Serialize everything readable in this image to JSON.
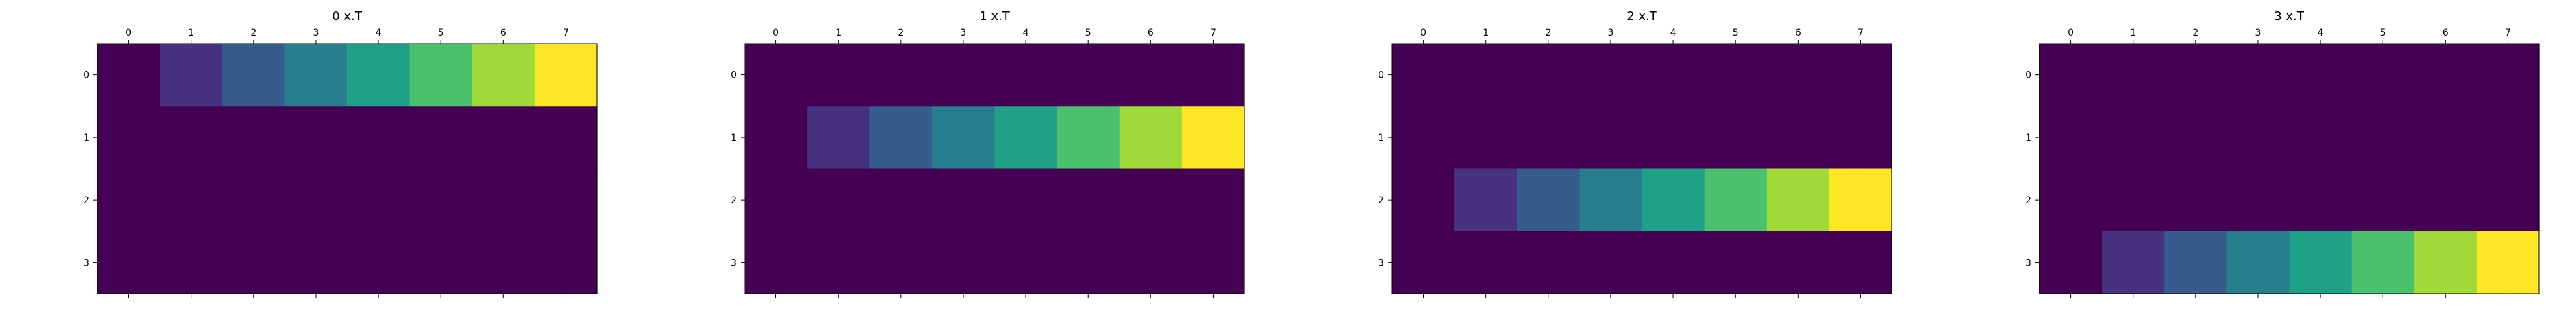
{
  "chart_data": [
    {
      "type": "heatmap",
      "title": "0 x.T",
      "x_ticks": [
        "0",
        "1",
        "2",
        "3",
        "4",
        "5",
        "6",
        "7"
      ],
      "y_ticks": [
        "0",
        "1",
        "2",
        "3"
      ],
      "colormap": "viridis",
      "vmin": 0,
      "vmax": 7,
      "values": [
        [
          0,
          1,
          2,
          3,
          4,
          5,
          6,
          7
        ],
        [
          0,
          0,
          0,
          0,
          0,
          0,
          0,
          0
        ],
        [
          0,
          0,
          0,
          0,
          0,
          0,
          0,
          0
        ],
        [
          0,
          0,
          0,
          0,
          0,
          0,
          0,
          0
        ]
      ]
    },
    {
      "type": "heatmap",
      "title": "1 x.T",
      "x_ticks": [
        "0",
        "1",
        "2",
        "3",
        "4",
        "5",
        "6",
        "7"
      ],
      "y_ticks": [
        "0",
        "1",
        "2",
        "3"
      ],
      "colormap": "viridis",
      "vmin": 0,
      "vmax": 7,
      "values": [
        [
          0,
          0,
          0,
          0,
          0,
          0,
          0,
          0
        ],
        [
          0,
          1,
          2,
          3,
          4,
          5,
          6,
          7
        ],
        [
          0,
          0,
          0,
          0,
          0,
          0,
          0,
          0
        ],
        [
          0,
          0,
          0,
          0,
          0,
          0,
          0,
          0
        ]
      ]
    },
    {
      "type": "heatmap",
      "title": "2 x.T",
      "x_ticks": [
        "0",
        "1",
        "2",
        "3",
        "4",
        "5",
        "6",
        "7"
      ],
      "y_ticks": [
        "0",
        "1",
        "2",
        "3"
      ],
      "colormap": "viridis",
      "vmin": 0,
      "vmax": 7,
      "values": [
        [
          0,
          0,
          0,
          0,
          0,
          0,
          0,
          0
        ],
        [
          0,
          0,
          0,
          0,
          0,
          0,
          0,
          0
        ],
        [
          0,
          1,
          2,
          3,
          4,
          5,
          6,
          7
        ],
        [
          0,
          0,
          0,
          0,
          0,
          0,
          0,
          0
        ]
      ]
    },
    {
      "type": "heatmap",
      "title": "3 x.T",
      "x_ticks": [
        "0",
        "1",
        "2",
        "3",
        "4",
        "5",
        "6",
        "7"
      ],
      "y_ticks": [
        "0",
        "1",
        "2",
        "3"
      ],
      "colormap": "viridis",
      "vmin": 0,
      "vmax": 7,
      "values": [
        [
          0,
          0,
          0,
          0,
          0,
          0,
          0,
          0
        ],
        [
          0,
          0,
          0,
          0,
          0,
          0,
          0,
          0
        ],
        [
          0,
          0,
          0,
          0,
          0,
          0,
          0,
          0
        ],
        [
          0,
          1,
          2,
          3,
          4,
          5,
          6,
          7
        ]
      ]
    }
  ],
  "colors": {
    "viridis_stops": [
      "#440154",
      "#46327e",
      "#365c8d",
      "#277f8e",
      "#1fa187",
      "#4ac16d",
      "#a0da39",
      "#fde725"
    ]
  }
}
